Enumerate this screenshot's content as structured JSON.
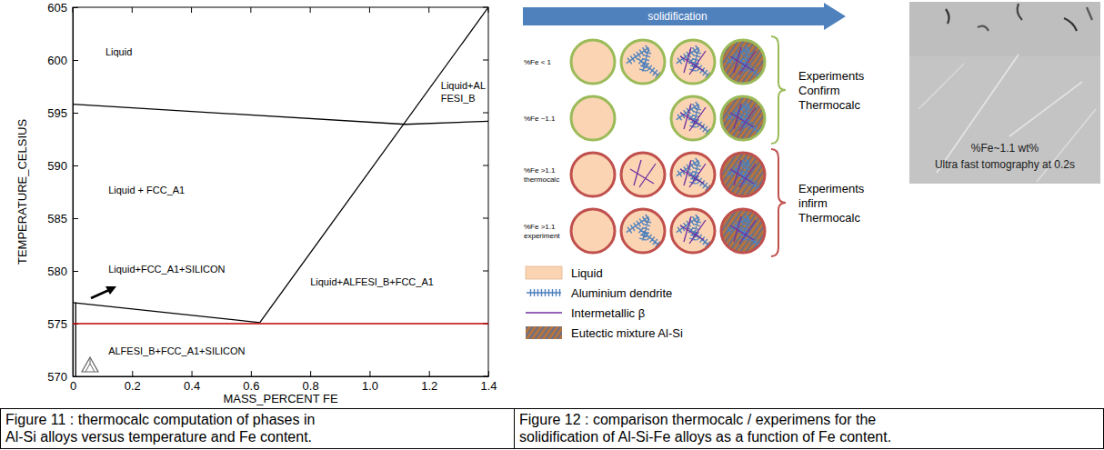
{
  "chart_data": {
    "type": "line",
    "x_label": "MASS_PERCENT FE",
    "y_label": "TEMPERATURE_CELSIUS",
    "xlim": [
      0,
      1.4
    ],
    "ylim": [
      570,
      605
    ],
    "xticks": [
      0,
      0.2,
      0.4,
      0.6,
      0.8,
      {
        "value": 1,
        "label": "1.0"
      },
      1.2,
      1.4
    ],
    "yticks": [
      570,
      575,
      580,
      585,
      590,
      595,
      600,
      605
    ],
    "series": [
      {
        "x": [
          0,
          1.12,
          1.4
        ],
        "values": [
          595.8,
          593.9,
          594.2
        ],
        "color": "#000000"
      },
      {
        "x": [
          0.63,
          1.4
        ],
        "values": [
          575.1,
          605
        ],
        "color": "#000000"
      },
      {
        "x": [
          0,
          0.63
        ],
        "values": [
          577,
          575.1
        ],
        "color": "#000000"
      },
      {
        "x": [
          0.01,
          0.01
        ],
        "values": [
          570,
          577
        ],
        "color": "#000000"
      },
      {
        "x": [
          0,
          1.4
        ],
        "values": [
          575,
          575
        ],
        "color": "#c00000"
      }
    ],
    "annotations": [
      {
        "text": [
          "Liquid"
        ],
        "x": 0.11,
        "y": 600.8
      },
      {
        "text": [
          "Liquid + FCC_A1"
        ],
        "x": 0.12,
        "y": 587.7
      },
      {
        "text": [
          "Liquid+FCC_A1+SILICON"
        ],
        "x": 0.12,
        "y": 580.2
      },
      {
        "text": [
          "Liquid+ALFESI_B+FCC_A1"
        ],
        "x": 0.8,
        "y": 579
      },
      {
        "text": [
          "ALFESI_B+FCC_A1+SILICON"
        ],
        "x": 0.12,
        "y": 572.4
      },
      {
        "text": [
          "Liquid+AL",
          "FESI_B"
        ],
        "x": 1.24,
        "y": 597.6
      }
    ]
  },
  "diagram": {
    "banner": "solidification",
    "groups": [
      {
        "text": [
          "Experiments",
          "Confirm",
          "Thermocalc"
        ],
        "color": "#9bbb59",
        "rows": [
          {
            "label": [
              "%Fe < 1"
            ],
            "stages": [
              [
                0
              ],
              [
                0,
                1
              ],
              [
                0,
                1,
                2
              ],
              [
                0,
                1,
                2,
                3
              ]
            ]
          },
          {
            "label": [
              "%Fe ~1.1"
            ],
            "stages": [
              [
                0
              ],
              null,
              [
                0,
                1,
                2
              ],
              [
                0,
                1,
                2,
                3
              ]
            ]
          }
        ]
      },
      {
        "text": [
          "Experiments",
          "infirm",
          "Thermocalc"
        ],
        "color": "#c0504d",
        "rows": [
          {
            "label": [
              "%Fe >1.1",
              "thermocalc"
            ],
            "stages": [
              [
                0
              ],
              [
                0,
                2
              ],
              [
                0,
                1,
                2
              ],
              [
                0,
                1,
                2,
                3
              ]
            ]
          },
          {
            "label": [
              "%Fe >1.1",
              "experiment"
            ],
            "stages": [
              [
                0
              ],
              [
                0,
                1
              ],
              [
                0,
                1,
                2
              ],
              [
                0,
                1,
                2,
                3
              ]
            ]
          }
        ]
      }
    ],
    "legend": [
      {
        "label": "Liquid",
        "color": "#fbd4b4",
        "marker": "fill"
      },
      {
        "label": "Aluminium dendrite",
        "color": "#4f81bd",
        "marker": "fishbone"
      },
      {
        "label": "Intermetallic β",
        "color": "#7030a0",
        "marker": "line"
      },
      {
        "label": "Eutectic mixture Al-Si",
        "colors": [
          "#b4743f",
          "#5a6e9a"
        ],
        "marker": "hatch"
      }
    ],
    "photo": {
      "lines": [
        "%Fe~1.1 wt%",
        "Ultra fast tomography at 0.2s"
      ]
    }
  },
  "captions": [
    [
      "Figure 11 : thermocalc computation of phases in",
      "Al-Si alloys versus temperature and Fe content."
    ],
    [
      "Figure 12 : comparison thermocalc / experimens for the",
      "solidification of Al-Si-Fe alloys as a function of Fe content."
    ]
  ]
}
